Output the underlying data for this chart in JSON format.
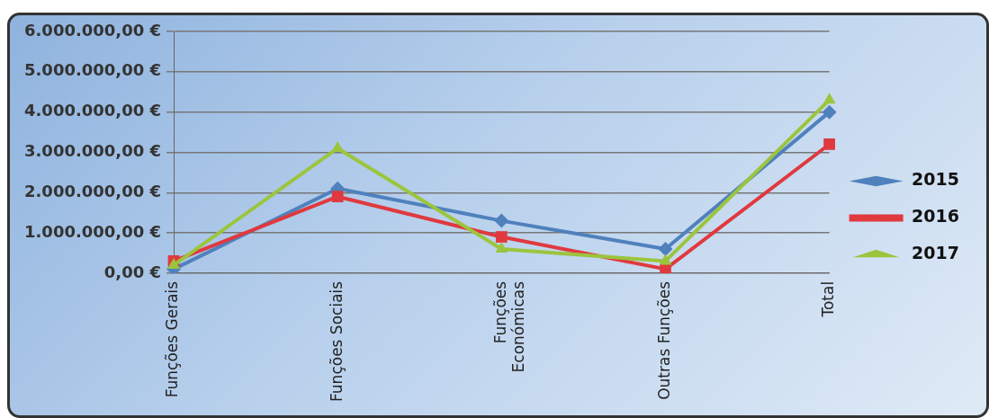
{
  "chart_data": {
    "type": "line",
    "categories": [
      "Funções Gerais",
      "Funções Sociais",
      "Funções Económicas",
      "Outras Funções",
      "Total"
    ],
    "series": [
      {
        "name": "2015",
        "color": "#4f81bd",
        "marker": "diamond",
        "values": [
          100000,
          2100000,
          1300000,
          600000,
          4000000
        ]
      },
      {
        "name": "2016",
        "color": "#e0393e",
        "marker": "square",
        "values": [
          300000,
          1900000,
          900000,
          100000,
          3200000
        ]
      },
      {
        "name": "2017",
        "color": "#9bc53d",
        "marker": "triangle",
        "values": [
          200000,
          3100000,
          600000,
          300000,
          4300000
        ]
      }
    ],
    "ylim": [
      0,
      6000000
    ],
    "yticks": [
      {
        "value": 0,
        "label": "0,00 €"
      },
      {
        "value": 1000000,
        "label": "1.000.000,00 €"
      },
      {
        "value": 2000000,
        "label": "2.000.000,00 €"
      },
      {
        "value": 3000000,
        "label": "3.000.000,00 €"
      },
      {
        "value": 4000000,
        "label": "4.000.000,00 €"
      },
      {
        "value": 5000000,
        "label": "5.000.000,00 €"
      },
      {
        "value": 6000000,
        "label": "6.000.000,00 €"
      }
    ],
    "grid": "y",
    "legend": "right",
    "line_style": "solid"
  }
}
